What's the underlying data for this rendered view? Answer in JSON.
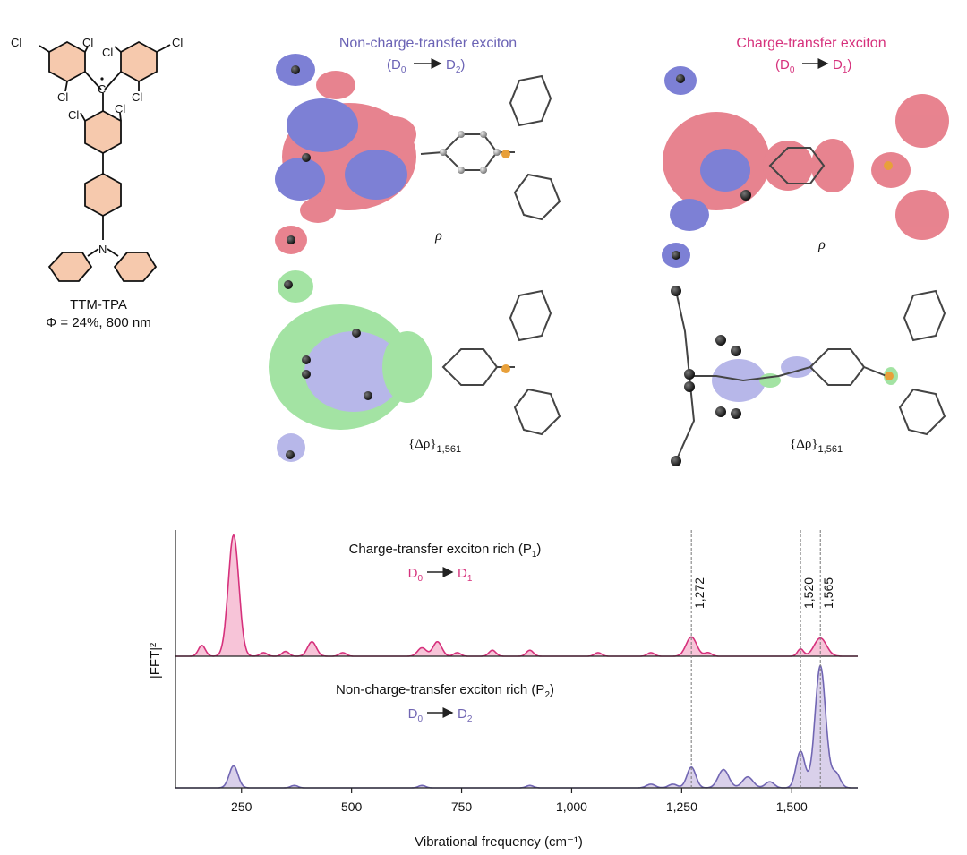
{
  "molecule": {
    "name": "TTM-TPA",
    "yield_label": "Φ = 24%, 800 nm",
    "atom_cl": "Cl",
    "atom_n": "N",
    "ring_color": "#f6c9ad"
  },
  "panels": {
    "nct": {
      "title": "Non-charge-transfer exciton",
      "transition": {
        "from": "D",
        "from_sub": "0",
        "to": "D",
        "to_sub": "2"
      },
      "rho_label": "ρ",
      "drho_label": "{Δρ}",
      "drho_sub": "1,561",
      "color": "#6b63b5"
    },
    "ct": {
      "title": "Charge-transfer exciton",
      "transition": {
        "from": "D",
        "from_sub": "0",
        "to": "D",
        "to_sub": "1"
      },
      "rho_label": "ρ",
      "drho_label": "{Δρ}",
      "drho_sub": "1,561",
      "color": "#d6317c"
    }
  },
  "chart_data": {
    "type": "area",
    "xlabel": "Vibrational frequency (cm⁻¹)",
    "ylabel": "|FFT|²",
    "xlim": [
      100,
      1650
    ],
    "xticks": [
      250,
      500,
      750,
      1000,
      1250,
      1500
    ],
    "xtick_labels": [
      "250",
      "500",
      "750",
      "1,000",
      "1,250",
      "1,500"
    ],
    "marked_frequencies": [
      {
        "x": 1272,
        "label": "1,272"
      },
      {
        "x": 1520,
        "label": "1,520"
      },
      {
        "x": 1565,
        "label": "1,565"
      }
    ],
    "series": [
      {
        "name": "Charge-transfer exciton rich (P₁)",
        "label": "Charge-transfer exciton rich (P",
        "label_sub": "1",
        "transition": {
          "from": "D",
          "from_sub": "0",
          "to": "D",
          "to_sub": "1"
        },
        "color": "#d6317c",
        "fill": "#f7c4d8",
        "ylim": [
          0,
          1
        ],
        "peaks": [
          [
            160,
            0.09,
            8
          ],
          [
            232,
            1.0,
            12
          ],
          [
            300,
            0.03,
            8
          ],
          [
            350,
            0.04,
            8
          ],
          [
            410,
            0.12,
            10
          ],
          [
            480,
            0.03,
            8
          ],
          [
            660,
            0.07,
            10
          ],
          [
            695,
            0.12,
            10
          ],
          [
            740,
            0.03,
            8
          ],
          [
            820,
            0.05,
            8
          ],
          [
            905,
            0.05,
            8
          ],
          [
            1060,
            0.03,
            8
          ],
          [
            1180,
            0.03,
            8
          ],
          [
            1272,
            0.16,
            12
          ],
          [
            1310,
            0.03,
            8
          ],
          [
            1520,
            0.06,
            7
          ],
          [
            1565,
            0.15,
            14
          ]
        ]
      },
      {
        "name": "Non-charge-transfer exciton rich (P₂)",
        "label": "Non-charge-transfer exciton rich (P",
        "label_sub": "2",
        "transition": {
          "from": "D",
          "from_sub": "0",
          "to": "D",
          "to_sub": "2"
        },
        "color": "#7166b3",
        "fill": "#d9d0ea",
        "ylim": [
          0,
          1
        ],
        "peaks": [
          [
            232,
            0.18,
            10
          ],
          [
            370,
            0.02,
            8
          ],
          [
            660,
            0.02,
            8
          ],
          [
            905,
            0.02,
            8
          ],
          [
            1180,
            0.03,
            10
          ],
          [
            1230,
            0.03,
            10
          ],
          [
            1272,
            0.17,
            10
          ],
          [
            1345,
            0.15,
            12
          ],
          [
            1400,
            0.09,
            12
          ],
          [
            1450,
            0.05,
            10
          ],
          [
            1520,
            0.3,
            10
          ],
          [
            1565,
            1.0,
            12
          ],
          [
            1600,
            0.12,
            10
          ]
        ]
      }
    ]
  }
}
